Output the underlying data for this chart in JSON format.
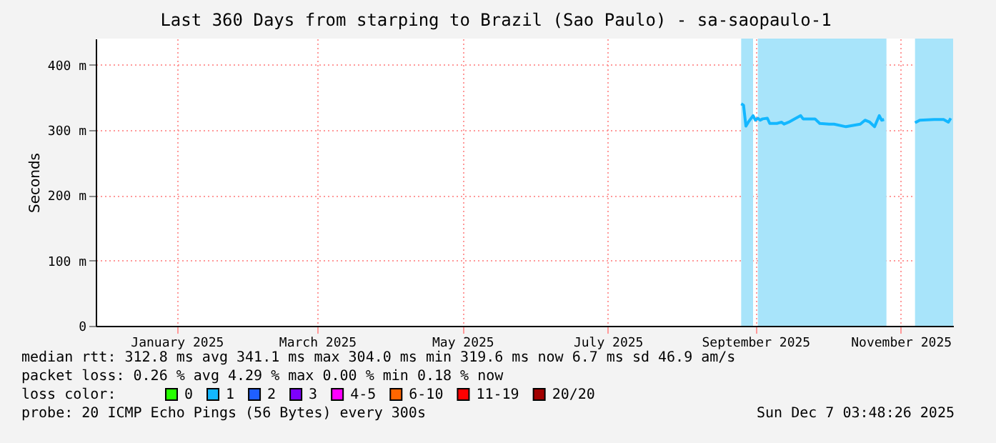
{
  "chart_data": {
    "type": "line",
    "title": "Last 360 Days from starping to Brazil (Sao Paulo) - sa-saopaulo-1",
    "ylabel": "Seconds",
    "x": [
      "2025-09-09",
      "2025-09-10",
      "2025-09-11",
      "2025-09-12",
      "2025-09-14",
      "2025-09-15",
      "2025-09-16",
      "2025-09-17",
      "2025-09-18",
      "2025-09-20",
      "2025-09-21",
      "2025-09-24",
      "2025-09-26",
      "2025-09-27",
      "2025-09-29",
      "2025-10-01",
      "2025-10-04",
      "2025-10-05",
      "2025-10-10",
      "2025-10-12",
      "2025-10-16",
      "2025-10-18",
      "2025-10-23",
      "2025-10-29",
      "2025-10-31",
      "2025-11-02",
      "2025-11-04",
      "2025-11-06",
      "2025-11-07",
      "2025-11-08",
      "2025-11-15",
      "2025-11-21",
      "2025-11-23",
      "2025-11-29",
      "2025-12-03",
      "2025-12-05",
      "2025-12-06"
    ],
    "series": [
      {
        "name": "0",
        "color": "#26ff00",
        "values": [
          null,
          null,
          null,
          null,
          null,
          null,
          null,
          null,
          null,
          null,
          null,
          null,
          null,
          null,
          null,
          null,
          null,
          null,
          null,
          null,
          null,
          null,
          null,
          null,
          null,
          null,
          null,
          null,
          null,
          null,
          null,
          null,
          null,
          null,
          null,
          null,
          null
        ]
      },
      {
        "name": "1",
        "color": "#13b7ff",
        "values": [
          340,
          338,
          306,
          312,
          322,
          315,
          318,
          315,
          317,
          318,
          310,
          310,
          312,
          309,
          312,
          316,
          322,
          317,
          317,
          310,
          309,
          309,
          305,
          309,
          315,
          312,
          305,
          322,
          315,
          316,
          null,
          311,
          315,
          316,
          316,
          312,
          318
        ]
      },
      {
        "name": "2",
        "color": "#1f5fff",
        "values": [
          null,
          null,
          null,
          null,
          null,
          null,
          null,
          null,
          null,
          null,
          null,
          null,
          null,
          null,
          null,
          null,
          null,
          null,
          null,
          null,
          null,
          null,
          null,
          null,
          null,
          null,
          null,
          null,
          null,
          null,
          null,
          null,
          null,
          null,
          null,
          null,
          null
        ]
      },
      {
        "name": "3",
        "color": "#7e00ff",
        "values": [
          null,
          null,
          null,
          null,
          null,
          null,
          null,
          null,
          null,
          null,
          null,
          null,
          null,
          null,
          null,
          null,
          null,
          null,
          null,
          null,
          null,
          null,
          null,
          null,
          null,
          null,
          null,
          null,
          null,
          null,
          null,
          null,
          null,
          null,
          null,
          null,
          null
        ]
      },
      {
        "name": "4-5",
        "color": "#ff00ff",
        "values": [
          null,
          null,
          null,
          null,
          null,
          null,
          null,
          null,
          null,
          null,
          null,
          null,
          null,
          null,
          null,
          null,
          null,
          null,
          null,
          null,
          null,
          null,
          null,
          null,
          null,
          null,
          null,
          null,
          null,
          null,
          null,
          null,
          null,
          null,
          null,
          null,
          null
        ]
      },
      {
        "name": "6-10",
        "color": "#ff6600",
        "values": [
          null,
          null,
          null,
          null,
          null,
          null,
          null,
          null,
          null,
          null,
          null,
          null,
          null,
          null,
          null,
          null,
          null,
          null,
          null,
          null,
          null,
          null,
          null,
          null,
          null,
          null,
          null,
          null,
          null,
          null,
          null,
          null,
          null,
          null,
          null,
          null,
          null
        ]
      },
      {
        "name": "11-19",
        "color": "#ff0000",
        "values": [
          null,
          null,
          null,
          null,
          null,
          null,
          null,
          null,
          null,
          null,
          null,
          null,
          null,
          null,
          null,
          null,
          null,
          null,
          null,
          null,
          null,
          null,
          null,
          null,
          null,
          null,
          null,
          null,
          null,
          null,
          null,
          null,
          null,
          null,
          null,
          null,
          null
        ]
      },
      {
        "name": "20/20",
        "color": "#a10000",
        "values": [
          null,
          null,
          null,
          null,
          null,
          null,
          null,
          null,
          null,
          null,
          null,
          null,
          null,
          null,
          null,
          null,
          null,
          null,
          null,
          null,
          null,
          null,
          null,
          null,
          null,
          null,
          null,
          null,
          null,
          null,
          null,
          null,
          null,
          null,
          null,
          null,
          null
        ]
      }
    ],
    "legend": "bottom",
    "legend_title": "loss color:",
    "xlim": [
      "2024-12-12",
      "2025-12-07"
    ],
    "xticks": [
      {
        "value": "2025-01-15",
        "label": "January 2025"
      },
      {
        "value": "2025-03-15",
        "label": "March 2025"
      },
      {
        "value": "2025-05-15",
        "label": "May 2025"
      },
      {
        "value": "2025-07-15",
        "label": "July 2025"
      },
      {
        "value": "2025-09-15",
        "label": "September 2025"
      },
      {
        "value": "2025-11-15",
        "label": "November 2025"
      }
    ],
    "ylim": [
      0,
      440
    ],
    "yticks": [
      0,
      {
        "value": 100,
        "label": "100 m"
      },
      {
        "value": 200,
        "label": "200 m"
      },
      {
        "value": 300,
        "label": "300 m"
      },
      {
        "value": 400,
        "label": "400 m"
      }
    ],
    "grid": true,
    "bands": [
      {
        "axis": "x",
        "from": "2025-09-09",
        "to": "2025-09-14",
        "color": "#a8e4fa"
      },
      {
        "axis": "x",
        "from": "2025-09-16",
        "to": "2025-11-09",
        "color": "#a8e4fa"
      },
      {
        "axis": "x",
        "from": "2025-11-21",
        "to": "2025-12-07",
        "color": "#a8e4fa"
      }
    ],
    "annotations": [
      "median rtt:  312.8 ms avg   341.1 ms max   304.0 ms min   319.6 ms now   6.7 ms sd   46.9    am/s",
      "packet loss: 0.26 % avg   4.29 % max   0.00 % min   0.18 % now",
      "probe:       20 ICMP Echo Pings (56 Bytes) every 300s",
      "Sun Dec  7 03:48:26 2025"
    ]
  }
}
